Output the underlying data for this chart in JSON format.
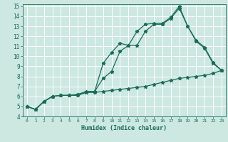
{
  "title": "",
  "xlabel": "Humidex (Indice chaleur)",
  "bg_color": "#cce8e0",
  "grid_color": "#ffffff",
  "line_color": "#1a6b58",
  "xlim": [
    -0.5,
    23.5
  ],
  "ylim": [
    4,
    15.2
  ],
  "xticks": [
    0,
    1,
    2,
    3,
    4,
    5,
    6,
    7,
    8,
    9,
    10,
    11,
    12,
    13,
    14,
    15,
    16,
    17,
    18,
    19,
    20,
    21,
    22,
    23
  ],
  "yticks": [
    4,
    5,
    6,
    7,
    8,
    9,
    10,
    11,
    12,
    13,
    14,
    15
  ],
  "line1_x": [
    0,
    1,
    2,
    3,
    4,
    5,
    6,
    7,
    8,
    9,
    10,
    11,
    12,
    13,
    14,
    15,
    16,
    17,
    18,
    19,
    20,
    21,
    22,
    23
  ],
  "line1_y": [
    5.0,
    4.7,
    5.5,
    6.0,
    6.1,
    6.1,
    6.1,
    6.4,
    6.5,
    9.3,
    10.4,
    11.3,
    11.1,
    12.5,
    13.2,
    13.3,
    13.3,
    13.9,
    15.0,
    13.0,
    11.6,
    10.9,
    9.4,
    8.6
  ],
  "line2_x": [
    0,
    1,
    2,
    3,
    4,
    5,
    6,
    7,
    8,
    9,
    10,
    11,
    12,
    13,
    14,
    15,
    16,
    17,
    18,
    19,
    20,
    21,
    22,
    23
  ],
  "line2_y": [
    5.0,
    4.7,
    5.5,
    6.0,
    6.1,
    6.1,
    6.2,
    6.5,
    6.5,
    7.8,
    8.5,
    10.5,
    11.1,
    11.1,
    12.5,
    13.2,
    13.2,
    13.8,
    14.8,
    13.0,
    11.5,
    10.8,
    9.3,
    8.6
  ],
  "line3_x": [
    0,
    1,
    2,
    3,
    4,
    5,
    6,
    7,
    8,
    9,
    10,
    11,
    12,
    13,
    14,
    15,
    16,
    17,
    18,
    19,
    20,
    21,
    22,
    23
  ],
  "line3_y": [
    5.0,
    4.7,
    5.5,
    6.0,
    6.1,
    6.1,
    6.2,
    6.4,
    6.4,
    6.5,
    6.6,
    6.7,
    6.8,
    6.9,
    7.0,
    7.2,
    7.4,
    7.6,
    7.8,
    7.9,
    8.0,
    8.1,
    8.3,
    8.6
  ]
}
